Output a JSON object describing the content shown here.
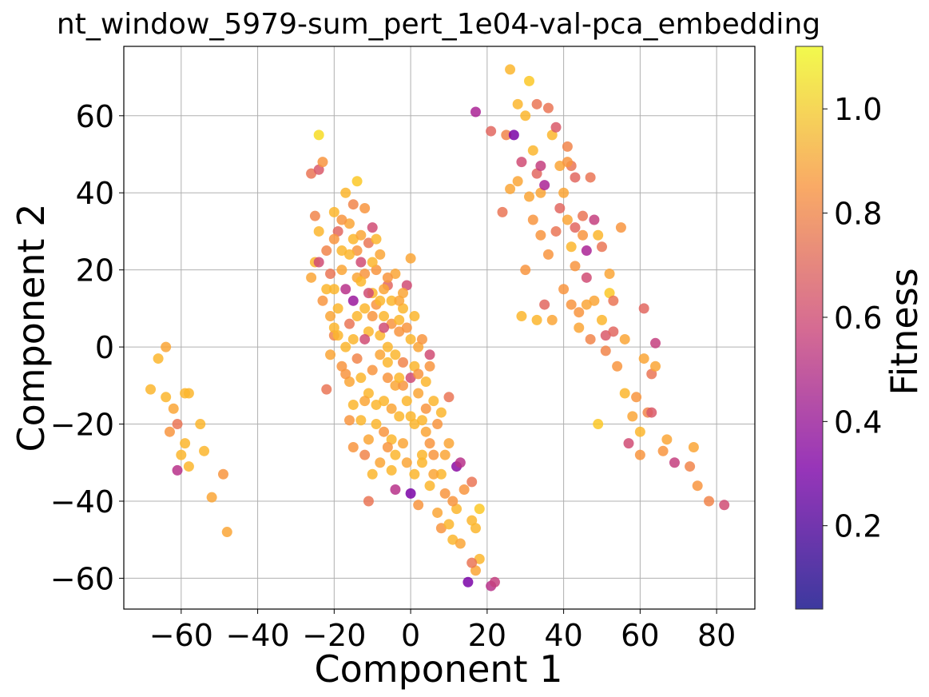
{
  "chart_data": {
    "type": "scatter",
    "title": "nt_window_5979-sum_pert_1e04-val-pca_embedding",
    "xlabel": "Component 1",
    "ylabel": "Component 2",
    "xlim": [
      -75,
      90
    ],
    "ylim": [
      -68,
      78
    ],
    "xticks": [
      -60,
      -40,
      -20,
      0,
      20,
      40,
      60,
      80
    ],
    "yticks": [
      -60,
      -40,
      -20,
      0,
      20,
      40,
      60
    ],
    "grid": true,
    "colormap": "plasma",
    "marker_alpha": 0.85,
    "colorbar": {
      "label": "Fitness",
      "range": [
        0.04,
        1.12
      ],
      "ticks": [
        0.2,
        0.4,
        0.6,
        0.8,
        1.0
      ],
      "tick_labels": [
        "0.2",
        "0.4",
        "0.6",
        "0.8",
        "1.0"
      ]
    },
    "points": [
      [
        -68,
        -11,
        0.95
      ],
      [
        -66,
        -3,
        0.95
      ],
      [
        -64,
        0,
        0.9
      ],
      [
        -64,
        -13,
        0.95
      ],
      [
        -63,
        -22,
        0.85
      ],
      [
        -62,
        -16,
        0.9
      ],
      [
        -61,
        -20,
        0.75
      ],
      [
        -61,
        -32,
        0.5
      ],
      [
        -60,
        -28,
        0.95
      ],
      [
        -59,
        -12,
        0.95
      ],
      [
        -59,
        -25,
        0.95
      ],
      [
        -58,
        -31,
        0.95
      ],
      [
        -58,
        -12,
        0.95
      ],
      [
        -55,
        -20,
        0.95
      ],
      [
        -54,
        -27,
        0.95
      ],
      [
        -52,
        -39,
        0.9
      ],
      [
        -49,
        -33,
        0.85
      ],
      [
        -48,
        -48,
        0.9
      ],
      [
        -26,
        45,
        0.75
      ],
      [
        -25,
        34,
        0.8
      ],
      [
        -24,
        55,
        1.05
      ],
      [
        -24,
        46,
        0.65
      ],
      [
        -23,
        48,
        0.85
      ],
      [
        -26,
        18,
        0.9
      ],
      [
        -25,
        22,
        0.95
      ],
      [
        -24,
        30,
        0.95
      ],
      [
        -23,
        12,
        0.85
      ],
      [
        -22,
        25,
        0.8
      ],
      [
        -21,
        8,
        0.9
      ],
      [
        -20,
        35,
        0.95
      ],
      [
        -20,
        3,
        0.8
      ],
      [
        -19,
        30,
        0.7
      ],
      [
        -18,
        20,
        0.9
      ],
      [
        -17,
        40,
        0.95
      ],
      [
        -17,
        15,
        0.5
      ],
      [
        -16,
        6,
        0.75
      ],
      [
        -15,
        37,
        0.8
      ],
      [
        -15,
        28,
        0.95
      ],
      [
        -14,
        43,
        1.0
      ],
      [
        -14,
        18,
        0.9
      ],
      [
        -13,
        22,
        0.6
      ],
      [
        -12,
        36,
        0.85
      ],
      [
        -12,
        10,
        0.95
      ],
      [
        -11,
        27,
        0.75
      ],
      [
        -10,
        31,
        0.6
      ],
      [
        -10,
        14,
        0.95
      ],
      [
        -9,
        20,
        0.85
      ],
      [
        -8,
        24,
        0.9
      ],
      [
        -7,
        8,
        0.95
      ],
      [
        -6,
        16,
        0.7
      ],
      [
        -5,
        12,
        0.95
      ],
      [
        -4,
        19,
        0.9
      ],
      [
        -3,
        4,
        0.85
      ],
      [
        -2,
        10,
        0.95
      ],
      [
        -1,
        16,
        0.6
      ],
      [
        0,
        23,
        0.9
      ],
      [
        0,
        2,
        0.95
      ],
      [
        -22,
        15,
        0.95
      ],
      [
        -20,
        28,
        0.85
      ],
      [
        -19,
        10,
        0.95
      ],
      [
        -18,
        25,
        0.95
      ],
      [
        -16,
        32,
        0.9
      ],
      [
        -15,
        12,
        0.4
      ],
      [
        -14,
        8,
        0.95
      ],
      [
        -13,
        29,
        0.9
      ],
      [
        -12,
        19,
        0.85
      ],
      [
        -11,
        4,
        0.95
      ],
      [
        -10,
        22,
        0.95
      ],
      [
        -9,
        11,
        0.85
      ],
      [
        -8,
        3,
        0.95
      ],
      [
        -7,
        15,
        0.9
      ],
      [
        -6,
        0,
        0.95
      ],
      [
        -5,
        6,
        0.85
      ],
      [
        -4,
        -2,
        0.95
      ],
      [
        -3,
        12,
        0.9
      ],
      [
        -22,
        -11,
        0.75
      ],
      [
        -21,
        -2,
        0.9
      ],
      [
        -20,
        5,
        0.95
      ],
      [
        -18,
        -5,
        0.85
      ],
      [
        -17,
        0,
        0.95
      ],
      [
        -16,
        -9,
        0.9
      ],
      [
        -15,
        -15,
        0.95
      ],
      [
        -14,
        -3,
        0.8
      ],
      [
        -13,
        -8,
        0.95
      ],
      [
        -12,
        2,
        0.6
      ],
      [
        -11,
        -12,
        0.95
      ],
      [
        -10,
        -6,
        0.85
      ],
      [
        -9,
        -20,
        0.95
      ],
      [
        -8,
        -2,
        0.9
      ],
      [
        -7,
        -14,
        0.95
      ],
      [
        -6,
        -8,
        0.85
      ],
      [
        -5,
        -24,
        0.95
      ],
      [
        -4,
        -10,
        0.9
      ],
      [
        -3,
        -18,
        0.95
      ],
      [
        -2,
        -4,
        0.8
      ],
      [
        -1,
        -14,
        0.95
      ],
      [
        0,
        -8,
        0.6
      ],
      [
        1,
        -20,
        0.95
      ],
      [
        2,
        -12,
        0.9
      ],
      [
        3,
        -28,
        0.95
      ],
      [
        4,
        -16,
        0.85
      ],
      [
        -16,
        -19,
        0.85
      ],
      [
        -15,
        -26,
        0.85
      ],
      [
        -12,
        -28,
        0.8
      ],
      [
        -11,
        -40,
        0.75
      ],
      [
        -10,
        -33,
        0.95
      ],
      [
        -8,
        -30,
        0.9
      ],
      [
        -6,
        -26,
        0.85
      ],
      [
        -5,
        -32,
        0.95
      ],
      [
        -4,
        -37,
        0.5
      ],
      [
        -2,
        -25,
        0.9
      ],
      [
        0,
        -38,
        0.3
      ],
      [
        1,
        -33,
        0.95
      ],
      [
        2,
        -41,
        0.85
      ],
      [
        3,
        -30,
        0.95
      ],
      [
        4,
        -22,
        0.9
      ],
      [
        5,
        -36,
        0.95
      ],
      [
        6,
        -28,
        0.85
      ],
      [
        7,
        -43,
        0.9
      ],
      [
        8,
        -33,
        0.95
      ],
      [
        9,
        -38,
        0.85
      ],
      [
        10,
        -25,
        0.9
      ],
      [
        10,
        -13,
        0.75
      ],
      [
        11,
        -50,
        0.95
      ],
      [
        12,
        -31,
        0.35
      ],
      [
        12,
        -42,
        0.95
      ],
      [
        13,
        -30,
        0.5
      ],
      [
        13,
        -51,
        0.9
      ],
      [
        14,
        -37,
        0.85
      ],
      [
        15,
        -61,
        0.3
      ],
      [
        16,
        -45,
        0.95
      ],
      [
        17,
        -47,
        0.95
      ],
      [
        17,
        -58,
        0.9
      ],
      [
        18,
        -42,
        1.0
      ],
      [
        18,
        -55,
        0.95
      ],
      [
        16,
        -35,
        0.75
      ],
      [
        16,
        -56,
        0.75
      ],
      [
        21,
        -62,
        0.5
      ],
      [
        22,
        -61,
        0.55
      ],
      [
        -24,
        22,
        0.6
      ],
      [
        -21,
        19,
        0.75
      ],
      [
        -19,
        3,
        0.95
      ],
      [
        -17,
        -7,
        0.85
      ],
      [
        -13,
        17,
        0.95
      ],
      [
        -9,
        28,
        0.95
      ],
      [
        -7,
        5,
        0.6
      ],
      [
        -6,
        18,
        0.85
      ],
      [
        -3,
        7,
        0.95
      ],
      [
        -2,
        -10,
        0.85
      ],
      [
        1,
        -5,
        0.95
      ],
      [
        2,
        0,
        0.9
      ],
      [
        3,
        2,
        0.85
      ],
      [
        4,
        -9,
        0.95
      ],
      [
        5,
        -2,
        0.6
      ],
      [
        6,
        -14,
        0.95
      ],
      [
        7,
        -20,
        0.85
      ],
      [
        8,
        -17,
        0.95
      ],
      [
        9,
        -28,
        0.9
      ],
      [
        -13,
        -19,
        0.95
      ],
      [
        -11,
        -24,
        0.9
      ],
      [
        -9,
        -15,
        0.95
      ],
      [
        -7,
        -22,
        0.85
      ],
      [
        -4,
        -28,
        0.95
      ],
      [
        -1,
        -30,
        0.9
      ],
      [
        3,
        -19,
        0.95
      ],
      [
        5,
        -25,
        0.85
      ],
      [
        6,
        -33,
        0.9
      ],
      [
        8,
        -47,
        0.85
      ],
      [
        10,
        -46,
        0.95
      ],
      [
        11,
        -40,
        0.85
      ],
      [
        -20,
        15,
        0.95
      ],
      [
        -18,
        33,
        0.85
      ],
      [
        -15,
        2,
        0.95
      ],
      [
        -14,
        25,
        0.85
      ],
      [
        -12,
        -14,
        0.9
      ],
      [
        -10,
        8,
        0.85
      ],
      [
        -8,
        12,
        0.95
      ],
      [
        -5,
        -16,
        0.9
      ],
      [
        -3,
        -8,
        0.95
      ],
      [
        -1,
        5,
        0.85
      ],
      [
        0,
        -18,
        0.95
      ],
      [
        2,
        -7,
        0.85
      ],
      [
        -16,
        24,
        0.95
      ],
      [
        -11,
        14,
        0.6
      ],
      [
        -6,
        -4,
        0.95
      ],
      [
        -2,
        14,
        0.9
      ],
      [
        1,
        8,
        0.95
      ],
      [
        5,
        -5,
        0.85
      ],
      [
        17,
        61,
        0.45
      ],
      [
        21,
        56,
        0.7
      ],
      [
        24,
        35,
        0.75
      ],
      [
        25,
        55,
        0.8
      ],
      [
        26,
        72,
        0.95
      ],
      [
        26,
        41,
        0.9
      ],
      [
        27,
        55,
        0.3
      ],
      [
        28,
        63,
        0.95
      ],
      [
        28,
        43,
        0.9
      ],
      [
        29,
        48,
        0.6
      ],
      [
        29,
        8,
        0.95
      ],
      [
        30,
        60,
        0.95
      ],
      [
        30,
        20,
        0.85
      ],
      [
        31,
        69,
        1.0
      ],
      [
        31,
        39,
        0.9
      ],
      [
        32,
        51,
        0.95
      ],
      [
        32,
        33,
        0.85
      ],
      [
        33,
        63,
        0.75
      ],
      [
        33,
        45,
        0.7
      ],
      [
        33,
        7,
        0.95
      ],
      [
        34,
        47,
        0.55
      ],
      [
        34,
        40,
        0.9
      ],
      [
        34,
        29,
        0.85
      ],
      [
        35,
        42,
        0.45
      ],
      [
        35,
        11,
        0.7
      ],
      [
        36,
        62,
        0.75
      ],
      [
        36,
        24,
        0.85
      ],
      [
        37,
        55,
        0.95
      ],
      [
        37,
        7,
        0.9
      ],
      [
        38,
        57,
        0.65
      ],
      [
        38,
        30,
        0.75
      ],
      [
        39,
        47,
        0.9
      ],
      [
        39,
        36,
        0.7
      ],
      [
        40,
        15,
        0.85
      ],
      [
        40,
        40,
        0.9
      ],
      [
        41,
        52,
        0.8
      ],
      [
        41,
        33,
        0.9
      ],
      [
        42,
        47,
        0.75
      ],
      [
        42,
        26,
        0.95
      ],
      [
        42,
        11,
        0.85
      ],
      [
        43,
        44,
        0.7
      ],
      [
        43,
        21,
        0.85
      ],
      [
        44,
        5,
        0.9
      ],
      [
        45,
        29,
        0.85
      ],
      [
        45,
        34,
        0.75
      ],
      [
        46,
        18,
        0.6
      ],
      [
        46,
        11,
        0.9
      ],
      [
        47,
        44,
        0.75
      ],
      [
        47,
        2,
        0.8
      ],
      [
        48,
        33,
        0.55
      ],
      [
        48,
        12,
        0.9
      ],
      [
        49,
        29,
        0.95
      ],
      [
        49,
        -20,
        1.0
      ],
      [
        50,
        7,
        0.95
      ],
      [
        50,
        26,
        0.75
      ],
      [
        51,
        -1,
        0.8
      ],
      [
        52,
        19,
        0.9
      ],
      [
        52,
        14,
        1.0
      ],
      [
        53,
        12,
        0.75
      ],
      [
        54,
        -5,
        0.85
      ],
      [
        55,
        31,
        0.85
      ],
      [
        56,
        2,
        0.9
      ],
      [
        56,
        -12,
        0.95
      ],
      [
        57,
        -25,
        0.6
      ],
      [
        58,
        -18,
        0.9
      ],
      [
        60,
        -28,
        0.85
      ],
      [
        61,
        -3,
        0.9
      ],
      [
        61,
        10,
        0.7
      ],
      [
        62,
        -17,
        0.8
      ],
      [
        63,
        -7,
        0.75
      ],
      [
        63,
        -17,
        0.65
      ],
      [
        64,
        1,
        0.55
      ],
      [
        64,
        -5,
        0.9
      ],
      [
        66,
        -27,
        0.85
      ],
      [
        67,
        -24,
        0.9
      ],
      [
        69,
        -30,
        0.55
      ],
      [
        73,
        -31,
        0.8
      ],
      [
        74,
        -26,
        0.9
      ],
      [
        75,
        -36,
        0.85
      ],
      [
        78,
        -40,
        0.8
      ],
      [
        82,
        -41,
        0.6
      ],
      [
        41,
        48,
        0.85
      ],
      [
        43,
        31,
        0.7
      ],
      [
        44,
        9,
        0.85
      ],
      [
        46,
        25,
        0.45
      ],
      [
        51,
        3,
        0.65
      ],
      [
        53,
        4,
        0.7
      ],
      [
        59,
        -13,
        0.85
      ],
      [
        60,
        -22,
        0.95
      ]
    ]
  }
}
